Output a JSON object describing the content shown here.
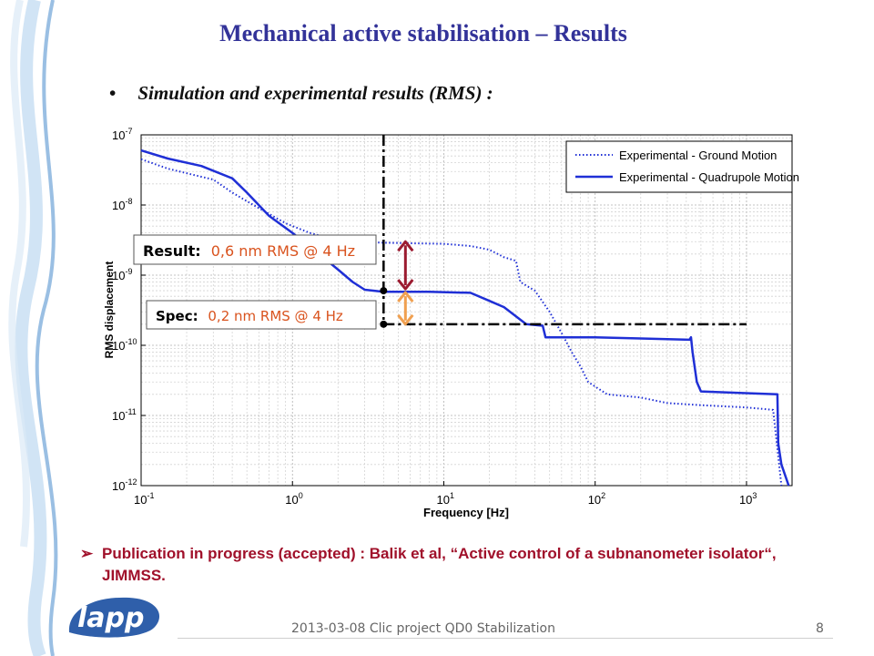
{
  "slide": {
    "title": "Mechanical active stabilisation – Results",
    "bullet": "Simulation and experimental results (RMS) :",
    "bullet_marker": "•",
    "publication": "Publication in progress (accepted) : Balik et al, “Active control of a subnanometer isolator“, JIMMSS.",
    "publication_marker": "➢",
    "footer": "2013-03-08 Clic project QD0 Stabilization",
    "page_number": "8",
    "logo_text": "lapp"
  },
  "colors": {
    "title": "#333399",
    "publication": "#A0102A",
    "result_arrow": "#9B1B30",
    "spec_arrow": "#F0A050",
    "series": "#1F2FD6",
    "annotation_value": "#D9531E",
    "logo": "#2F5FAA",
    "deco_wave": "#8FB8E0"
  },
  "chart_data": {
    "type": "line",
    "xlabel": "Frequency [Hz]",
    "ylabel": "RMS displacement",
    "x_scale": "log",
    "y_scale": "log",
    "xlim": [
      0.1,
      2000
    ],
    "ylim": [
      1e-12,
      1e-07
    ],
    "grid": true,
    "legend_position": "top-right",
    "x_ticks": [
      {
        "value": 0.1,
        "base": "10",
        "exp": "-1"
      },
      {
        "value": 1,
        "base": "10",
        "exp": "0"
      },
      {
        "value": 10,
        "base": "10",
        "exp": "1"
      },
      {
        "value": 100,
        "base": "10",
        "exp": "2"
      },
      {
        "value": 1000,
        "base": "10",
        "exp": "3"
      }
    ],
    "y_ticks": [
      {
        "value": 1e-12,
        "base": "10",
        "exp": "-12"
      },
      {
        "value": 1e-11,
        "base": "10",
        "exp": "-11"
      },
      {
        "value": 1e-10,
        "base": "10",
        "exp": "-10"
      },
      {
        "value": 1e-09,
        "base": "10",
        "exp": "-9"
      },
      {
        "value": 1e-08,
        "base": "10",
        "exp": "-8"
      },
      {
        "value": 1e-07,
        "base": "10",
        "exp": "-7"
      }
    ],
    "series": [
      {
        "name": "Experimental - Ground Motion",
        "style": "dotted",
        "points": [
          [
            0.1,
            4.5e-08
          ],
          [
            0.15,
            3.3e-08
          ],
          [
            0.22,
            2.7e-08
          ],
          [
            0.3,
            2.3e-08
          ],
          [
            0.4,
            1.5e-08
          ],
          [
            0.6,
            9e-09
          ],
          [
            0.9,
            5.5e-09
          ],
          [
            1.3,
            4e-09
          ],
          [
            1.8,
            3.3e-09
          ],
          [
            2.5,
            3e-09
          ],
          [
            4,
            2.9e-09
          ],
          [
            6,
            2.85e-09
          ],
          [
            10,
            2.8e-09
          ],
          [
            15,
            2.6e-09
          ],
          [
            20,
            2.3e-09
          ],
          [
            25,
            1.8e-09
          ],
          [
            30,
            1.6e-09
          ],
          [
            32,
            8e-10
          ],
          [
            40,
            6e-10
          ],
          [
            50,
            3e-10
          ],
          [
            60,
            1.5e-10
          ],
          [
            70,
            8e-11
          ],
          [
            80,
            5e-11
          ],
          [
            90,
            3e-11
          ],
          [
            120,
            2e-11
          ],
          [
            200,
            1.8e-11
          ],
          [
            300,
            1.5e-11
          ],
          [
            500,
            1.4e-11
          ],
          [
            1000,
            1.3e-11
          ],
          [
            1500,
            1.2e-11
          ],
          [
            1700,
            1e-12
          ]
        ]
      },
      {
        "name": "Experimental - Quadrupole Motion",
        "style": "solid",
        "points": [
          [
            0.1,
            6e-08
          ],
          [
            0.15,
            4.6e-08
          ],
          [
            0.25,
            3.6e-08
          ],
          [
            0.4,
            2.4e-08
          ],
          [
            0.5,
            1.5e-08
          ],
          [
            0.7,
            7e-09
          ],
          [
            1,
            4e-09
          ],
          [
            1.5,
            2e-09
          ],
          [
            2,
            1.2e-09
          ],
          [
            2.5,
            8e-10
          ],
          [
            3,
            6.2e-10
          ],
          [
            4,
            5.8e-10
          ],
          [
            8,
            5.8e-10
          ],
          [
            15,
            5.6e-10
          ],
          [
            20,
            4.3e-10
          ],
          [
            25,
            3.5e-10
          ],
          [
            35,
            2e-10
          ],
          [
            45,
            1.9e-10
          ],
          [
            47,
            1.3e-10
          ],
          [
            100,
            1.3e-10
          ],
          [
            200,
            1.25e-10
          ],
          [
            420,
            1.2e-10
          ],
          [
            430,
            1.3e-10
          ],
          [
            440,
            8e-11
          ],
          [
            470,
            3e-11
          ],
          [
            500,
            2.2e-11
          ],
          [
            900,
            2.1e-11
          ],
          [
            1600,
            2e-11
          ],
          [
            1620,
            4e-12
          ],
          [
            1700,
            2e-12
          ],
          [
            1900,
            1e-12
          ]
        ]
      }
    ],
    "annotations": [
      {
        "label": "Result:",
        "value": "0,6 nm RMS @ 4 Hz"
      },
      {
        "label": "Spec:",
        "value": "0,2 nm RMS @ 4 Hz"
      }
    ],
    "reference_lines": {
      "vertical_x": 4,
      "spec_y": 2e-10,
      "result_y": 6e-10,
      "ground_y": 3e-09
    }
  }
}
